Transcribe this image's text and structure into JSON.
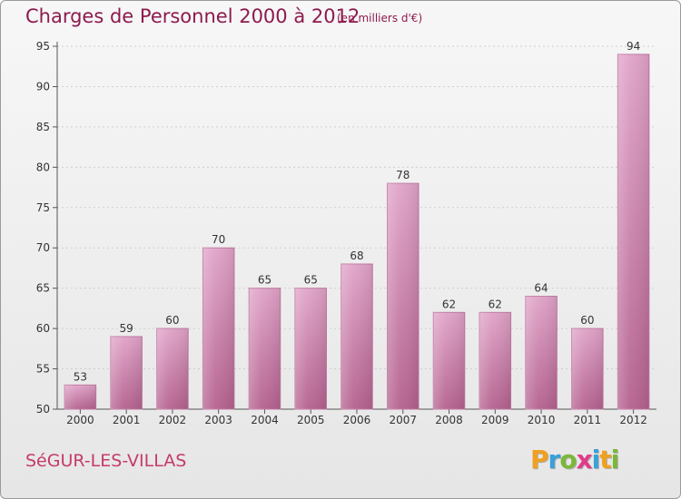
{
  "chart_data": {
    "type": "bar",
    "title": "Charges de Personnel 2000 à 2012",
    "subtitle": "(en milliers d'€)",
    "categories": [
      "2000",
      "2001",
      "2002",
      "2003",
      "2004",
      "2005",
      "2006",
      "2007",
      "2008",
      "2009",
      "2010",
      "2011",
      "2012"
    ],
    "values": [
      53,
      59,
      60,
      70,
      65,
      65,
      68,
      78,
      62,
      62,
      64,
      60,
      94
    ],
    "ylim": [
      50,
      95
    ],
    "yticks": [
      50,
      55,
      60,
      65,
      70,
      75,
      80,
      85,
      90,
      95
    ],
    "grid": true,
    "bar_color": "#d98ab4"
  },
  "footer": {
    "commune": "SéGUR-LES-VILLAS",
    "logo_letters": [
      "P",
      "r",
      "o",
      "x",
      "i",
      "t",
      "i"
    ],
    "logo_colors": [
      "#f0a020",
      "#3aa0d8",
      "#7ab83a",
      "#e03c8a",
      "#3aa0d8",
      "#f0a020",
      "#7ab83a"
    ]
  }
}
